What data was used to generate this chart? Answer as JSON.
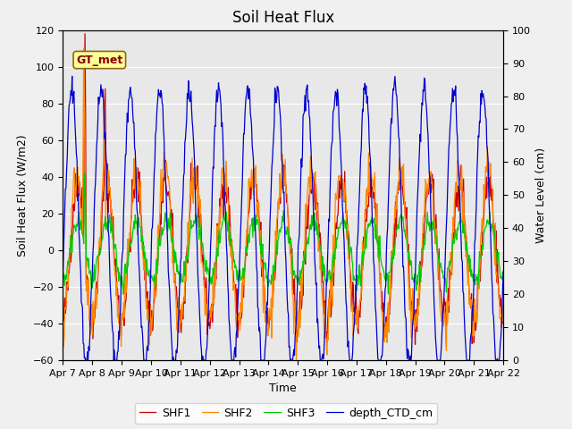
{
  "title": "Soil Heat Flux",
  "xlabel": "Time",
  "ylabel_left": "Soil Heat Flux (W/m2)",
  "ylabel_right": "Water Level (cm)",
  "ylim_left": [
    -60,
    120
  ],
  "ylim_right": [
    0,
    100
  ],
  "yticks_left": [
    -60,
    -40,
    -20,
    0,
    20,
    40,
    60,
    80,
    100,
    120
  ],
  "yticks_right": [
    0,
    10,
    20,
    30,
    40,
    50,
    60,
    70,
    80,
    90,
    100
  ],
  "annotation_text": "GT_met",
  "bg_color": "#f0f0f0",
  "plot_bg_color": "#e8e8e8",
  "grid_color": "#ffffff",
  "shf1_color": "#cc0000",
  "shf2_color": "#ff8800",
  "shf3_color": "#00cc00",
  "depth_color": "#0000cc",
  "legend_fontsize": 9,
  "title_fontsize": 12,
  "axis_fontsize": 9,
  "tick_fontsize": 8
}
